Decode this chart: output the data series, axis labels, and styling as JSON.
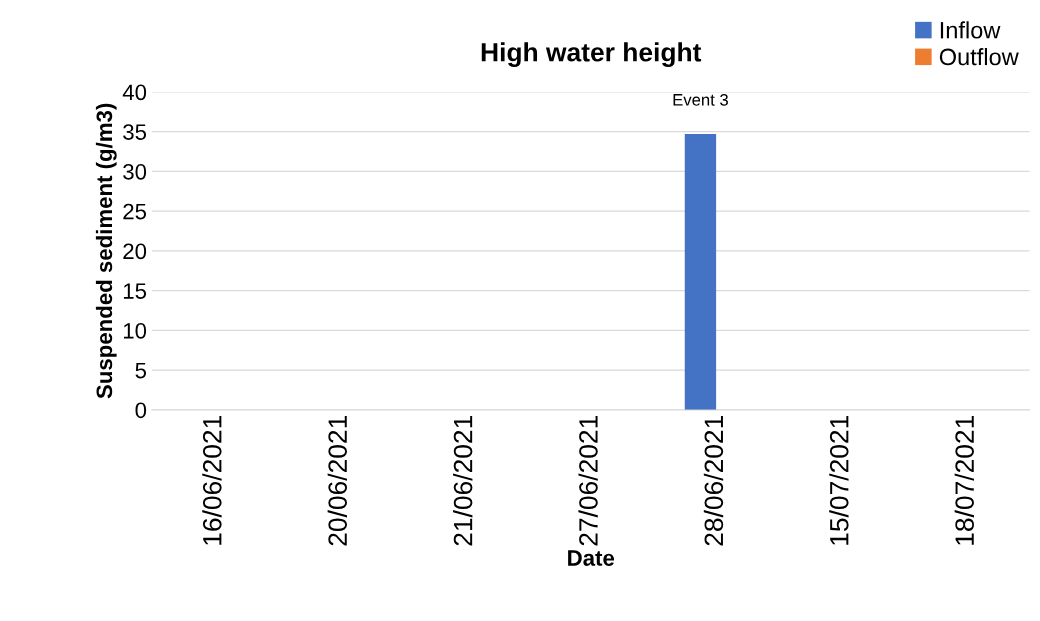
{
  "chart_data": {
    "type": "bar",
    "title": "High water height",
    "xlabel": "Date",
    "ylabel": "Suspended sediment (g/m3)",
    "categories": [
      "16/06/2021",
      "20/06/2021",
      "21/06/2021",
      "27/06/2021",
      "28/06/2021",
      "15/07/2021",
      "18/07/2021"
    ],
    "series": [
      {
        "name": "Inflow",
        "color": "#4472c4",
        "values": [
          null,
          null,
          null,
          null,
          34.7,
          null,
          null
        ]
      },
      {
        "name": "Outflow",
        "color": "#ed7d31",
        "values": [
          null,
          null,
          null,
          null,
          null,
          null,
          null
        ]
      }
    ],
    "ylim": [
      0,
      40
    ],
    "yticks": [
      0,
      5,
      10,
      15,
      20,
      25,
      30,
      35,
      40
    ],
    "grid": "y",
    "legend": "top right",
    "annotations": [
      {
        "text": "Event 3",
        "x": "28/06/2021",
        "y": 34.7
      }
    ]
  }
}
